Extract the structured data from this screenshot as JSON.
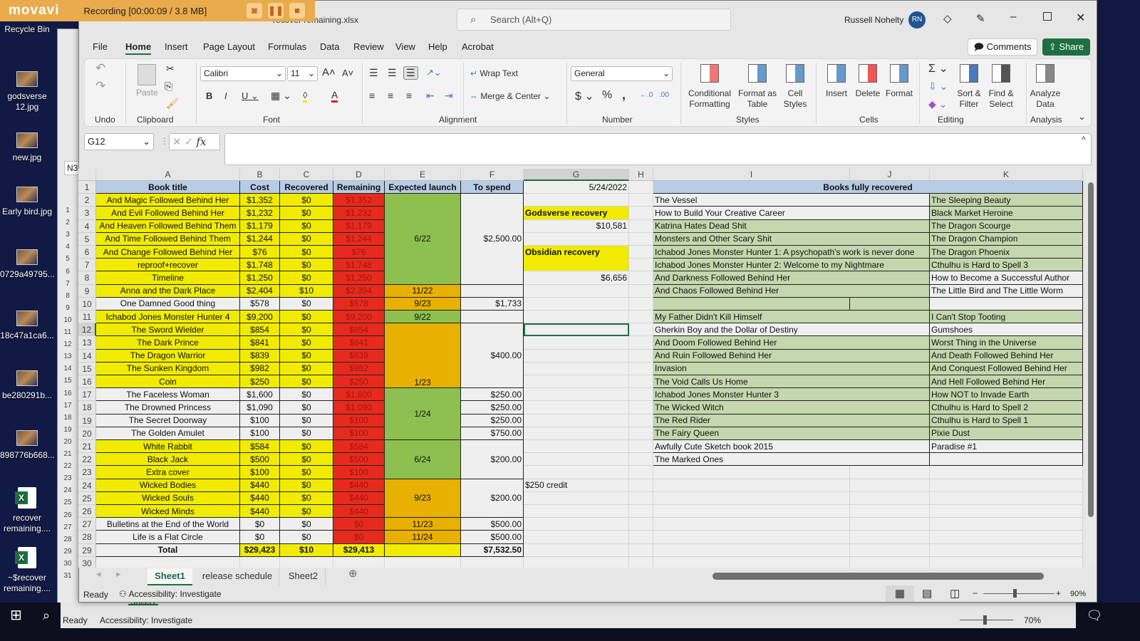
{
  "recorder": {
    "brand": "movavi",
    "status": "Recording  [00:00:09 / 3.8 MB]",
    "buttons": [
      "camera-icon",
      "pause-icon",
      "stop-icon"
    ]
  },
  "desktop": {
    "icons": [
      {
        "label": "Recycle Bin",
        "type": "bin"
      },
      {
        "label": "godsverse 12.jpg",
        "type": "image"
      },
      {
        "label": "new.jpg",
        "type": "image"
      },
      {
        "label": "Early bird.jpg",
        "type": "image"
      },
      {
        "label": "0729a49795...",
        "type": "image"
      },
      {
        "label": "18c47a1ca6...",
        "type": "image"
      },
      {
        "label": "be280291b...",
        "type": "image"
      },
      {
        "label": "898776b668...",
        "type": "image"
      },
      {
        "label": "recover remaining....",
        "type": "excel"
      },
      {
        "label": "~$recover remaining....",
        "type": "excel"
      }
    ]
  },
  "window": {
    "filename": "recover remaining.xlsx",
    "search_placeholder": "Search (Alt+Q)",
    "user": "Russell Nohelty",
    "avatar": "RN",
    "comments": "Comments",
    "share": "Share"
  },
  "tabs": [
    "File",
    "Home",
    "Insert",
    "Page Layout",
    "Formulas",
    "Data",
    "Review",
    "View",
    "Help",
    "Acrobat"
  ],
  "active_tab": "Home",
  "ribbon": {
    "font": "Calibri",
    "size": "11",
    "wrap": "Wrap Text",
    "merge": "Merge & Center",
    "number_format": "General",
    "paste": "Paste",
    "styles": [
      "Conditional Formatting",
      "Format as Table",
      "Cell Styles"
    ],
    "cells": [
      "Insert",
      "Delete",
      "Format"
    ],
    "editing": [
      "Sort & Filter",
      "Find & Select"
    ],
    "analysis": "Analyze Data",
    "groups": [
      "Undo",
      "Clipboard",
      "Font",
      "Alignment",
      "Number",
      "Styles",
      "Cells",
      "Editing",
      "Analysis"
    ]
  },
  "formula_bar": {
    "name_box": "G12",
    "formula": ""
  },
  "columns": [
    "A",
    "B",
    "C",
    "D",
    "E",
    "F",
    "G",
    "H",
    "I",
    "J",
    "K"
  ],
  "selected_cell": "G12",
  "colors": {
    "yellow": "#f0eb00",
    "red": "#e62b1e",
    "green": "#8dc04f",
    "orange": "#e8b000",
    "header_blue": "#b8cce4",
    "light_green": "#c4d7ae",
    "accent": "#1d6f42"
  },
  "main_table": {
    "headers": [
      "Book title",
      "Cost",
      "Recovered",
      "Remaining",
      "Expected launch",
      "To spend"
    ],
    "rows": [
      {
        "title": "And Magic Followed Behind Her",
        "cost": "$1,352",
        "recovered": "$0",
        "remaining": "$1,352",
        "fill": "yellow"
      },
      {
        "title": "And Evil Followed Behind Her",
        "cost": "$1,232",
        "recovered": "$0",
        "remaining": "$1,232",
        "fill": "yellow"
      },
      {
        "title": "And Heaven Followed Behind Them",
        "cost": "$1,179",
        "recovered": "$0",
        "remaining": "$1,179",
        "fill": "yellow"
      },
      {
        "title": "And Time Followed Behind Them",
        "cost": "$1,244",
        "recovered": "$0",
        "remaining": "$1,244",
        "fill": "yellow"
      },
      {
        "title": "And Change Followed Behind Her",
        "cost": "$76",
        "recovered": "$0",
        "remaining": "$76",
        "fill": "yellow"
      },
      {
        "title": "reproof+recover",
        "cost": "$1,748",
        "recovered": "$0",
        "remaining": "$1,748",
        "fill": "yellow"
      },
      {
        "title": "Timeline",
        "cost": "$1,250",
        "recovered": "$0",
        "remaining": "$1,250",
        "fill": "yellow"
      },
      {
        "title": "Anna and the Dark Place",
        "cost": "$2,404",
        "recovered": "$10",
        "remaining": "$2,394",
        "fill": "yellow"
      },
      {
        "title": "One Damned Good thing",
        "cost": "$578",
        "recovered": "$0",
        "remaining": "$578",
        "fill": "none"
      },
      {
        "title": "Ichabod Jones Monster Hunter 4",
        "cost": "$9,200",
        "recovered": "$0",
        "remaining": "$9,200",
        "fill": "yellow"
      },
      {
        "title": "The Sword Wielder",
        "cost": "$854",
        "recovered": "$0",
        "remaining": "$854",
        "fill": "yellow"
      },
      {
        "title": "The Dark Prince",
        "cost": "$841",
        "recovered": "$0",
        "remaining": "$841",
        "fill": "yellow"
      },
      {
        "title": "The Dragon Warrior",
        "cost": "$839",
        "recovered": "$0",
        "remaining": "$839",
        "fill": "yellow"
      },
      {
        "title": "The Sunken Kingdom",
        "cost": "$982",
        "recovered": "$0",
        "remaining": "$982",
        "fill": "yellow"
      },
      {
        "title": "Coin",
        "cost": "$250",
        "recovered": "$0",
        "remaining": "$250",
        "fill": "yellow"
      },
      {
        "title": "The Faceless Woman",
        "cost": "$1,600",
        "recovered": "$0",
        "remaining": "$1,600",
        "fill": "none"
      },
      {
        "title": "The Drowned Princess",
        "cost": "$1,090",
        "recovered": "$0",
        "remaining": "$1,090",
        "fill": "none"
      },
      {
        "title": "The Secret Doorway",
        "cost": "$100",
        "recovered": "$0",
        "remaining": "$100",
        "fill": "none"
      },
      {
        "title": "The Golden Amulet",
        "cost": "$100",
        "recovered": "$0",
        "remaining": "$100",
        "fill": "none"
      },
      {
        "title": "White Rabbit",
        "cost": "$584",
        "recovered": "$0",
        "remaining": "$584",
        "fill": "yellow"
      },
      {
        "title": "Black Jack",
        "cost": "$500",
        "recovered": "$0",
        "remaining": "$500",
        "fill": "yellow"
      },
      {
        "title": "Extra cover",
        "cost": "$100",
        "recovered": "$0",
        "remaining": "$100",
        "fill": "yellow"
      },
      {
        "title": "Wicked Bodies",
        "cost": "$440",
        "recovered": "$0",
        "remaining": "$440",
        "fill": "yellow"
      },
      {
        "title": "Wicked Souls",
        "cost": "$440",
        "recovered": "$0",
        "remaining": "$440",
        "fill": "yellow"
      },
      {
        "title": "Wicked Minds",
        "cost": "$440",
        "recovered": "$0",
        "remaining": "$440",
        "fill": "yellow"
      },
      {
        "title": "Bulletins at the End of the World",
        "cost": "$0",
        "recovered": "$0",
        "remaining": "$0",
        "fill": "none"
      },
      {
        "title": "Life is a Flat Circle",
        "cost": "$0",
        "recovered": "$0",
        "remaining": "$0",
        "fill": "none"
      }
    ],
    "total": {
      "title": "Total",
      "cost": "$29,423",
      "recovered": "$10",
      "remaining": "$29,413",
      "to_spend": "$7,532.50"
    },
    "launch_groups": [
      {
        "from": 2,
        "to": 8,
        "value": "6/22",
        "fill": "green"
      },
      {
        "from": 9,
        "to": 9,
        "value": "11/22",
        "fill": "orange"
      },
      {
        "from": 10,
        "to": 10,
        "value": "9/23",
        "fill": "orange"
      },
      {
        "from": 11,
        "to": 11,
        "value": "9/22",
        "fill": "green"
      },
      {
        "from": 12,
        "to": 16,
        "value": "1/23",
        "fill": "orange",
        "align": "bottom"
      },
      {
        "from": 17,
        "to": 20,
        "value": "1/24",
        "fill": "green"
      },
      {
        "from": 21,
        "to": 23,
        "value": "6/24",
        "fill": "green"
      },
      {
        "from": 24,
        "to": 26,
        "value": "9/23",
        "fill": "orange"
      },
      {
        "from": 27,
        "to": 27,
        "value": "11/23",
        "fill": "orange"
      },
      {
        "from": 28,
        "to": 28,
        "value": "11/24",
        "fill": "orange"
      },
      {
        "from": 29,
        "to": 29,
        "value": "",
        "fill": "yellow"
      }
    ],
    "spend_groups": [
      {
        "from": 2,
        "to": 8,
        "value": "$2,500.00"
      },
      {
        "from": 9,
        "to": 9,
        "value": ""
      },
      {
        "from": 10,
        "to": 10,
        "value": "$1,733"
      },
      {
        "from": 11,
        "to": 11,
        "value": ""
      },
      {
        "from": 12,
        "to": 16,
        "value": "$400.00"
      },
      {
        "from": 17,
        "to": 17,
        "value": "$250.00"
      },
      {
        "from": 18,
        "to": 18,
        "value": "$250.00"
      },
      {
        "from": 19,
        "to": 19,
        "value": "$250.00"
      },
      {
        "from": 20,
        "to": 20,
        "value": "$750.00"
      },
      {
        "from": 21,
        "to": 23,
        "value": "$200.00"
      },
      {
        "from": 24,
        "to": 26,
        "value": "$200.00"
      },
      {
        "from": 27,
        "to": 27,
        "value": "$500.00"
      },
      {
        "from": 28,
        "to": 28,
        "value": "$500.00"
      }
    ]
  },
  "side_cells": [
    {
      "row": 1,
      "value": "5/24/2022",
      "align": "right"
    },
    {
      "row": 3,
      "value": "Godsverse recovery",
      "align": "left",
      "fill": "yellow",
      "bold": true
    },
    {
      "row": 4,
      "value": "$10,581",
      "align": "right"
    },
    {
      "row": 6,
      "to": 7,
      "value": "Obsidian recovery",
      "align": "left",
      "fill": "yellow",
      "bold": true,
      "valign": "top"
    },
    {
      "row": 8,
      "value": "$6,656",
      "align": "right"
    },
    {
      "row": 24,
      "value": "$250 credit",
      "align": "left"
    }
  ],
  "recovered": {
    "header": "Books fully recovered",
    "col_i": [
      {
        "v": "The Vessel",
        "g": false
      },
      {
        "v": "How to Build Your Creative Career",
        "g": false
      },
      {
        "v": "Katrina Hates Dead Shit",
        "g": true
      },
      {
        "v": "Monsters and Other Scary Shit",
        "g": true
      },
      {
        "v": "Ichabod Jones Monster Hunter 1: A psychopath's work is never done",
        "g": true
      },
      {
        "v": "Ichabod Jones Monster Hunter 2: Welcome to my Nightmare",
        "g": true
      },
      {
        "v": "And Darkness Followed Behind Her",
        "g": true
      },
      {
        "v": "And Chaos Followed Behind Her",
        "g": true
      },
      {
        "v": "",
        "g": true
      },
      {
        "v": "My Father Didn't Kill Himself",
        "g": true
      },
      {
        "v": "Gherkin Boy and the Dollar of Destiny",
        "g": false
      },
      {
        "v": "And Doom Followed Behind Her",
        "g": true
      },
      {
        "v": "And Ruin Followed Behind Her",
        "g": true
      },
      {
        "v": "Invasion",
        "g": true
      },
      {
        "v": "The Void Calls Us Home",
        "g": true
      },
      {
        "v": "Ichabod Jones Monster Hunter 3",
        "g": true
      },
      {
        "v": "The Wicked Witch",
        "g": true
      },
      {
        "v": "The Red Rider",
        "g": true
      },
      {
        "v": "The Fairy Queen",
        "g": true
      },
      {
        "v": "Awfully Cute Sketch book 2015",
        "g": false
      },
      {
        "v": "The Marked Ones",
        "g": false
      }
    ],
    "col_k": [
      {
        "v": "The Sleeping Beauty",
        "g": true
      },
      {
        "v": "Black Market Heroine",
        "g": true
      },
      {
        "v": "The Dragon Scourge",
        "g": true
      },
      {
        "v": "The Dragon Champion",
        "g": true
      },
      {
        "v": "The Dragon Phoenix",
        "g": true
      },
      {
        "v": "Cthulhu is Hard to Spell 3",
        "g": true
      },
      {
        "v": "How to Become a Successful Author",
        "g": false
      },
      {
        "v": "The Little Bird and The Little Worm",
        "g": false
      },
      {
        "v": "",
        "g": false
      },
      {
        "v": "I Can't Stop Tooting",
        "g": true
      },
      {
        "v": "Gumshoes",
        "g": false
      },
      {
        "v": "Worst Thing in the Universe",
        "g": true
      },
      {
        "v": "And Death Followed Behind Her",
        "g": true
      },
      {
        "v": "And Conquest Followed Behind Her",
        "g": true
      },
      {
        "v": "And Hell Followed Behind Her",
        "g": true
      },
      {
        "v": "How NOT to Invade Earth",
        "g": true
      },
      {
        "v": "Cthulhu is Hard to Spell 2",
        "g": true
      },
      {
        "v": "Cthulhu is Hard to Spell 1",
        "g": true
      },
      {
        "v": "Pixie Dust",
        "g": true
      },
      {
        "v": "Paradise #1",
        "g": false
      },
      {
        "v": "",
        "g": false
      }
    ]
  },
  "sheets": [
    "Sheet1",
    "release schedule",
    "Sheet2"
  ],
  "active_sheet": "Sheet1",
  "status": {
    "ready": "Ready",
    "accessibility": "Accessibility: Investigate",
    "zoom": "90%",
    "zoom_fraction": 0.45
  },
  "background_window": {
    "name_box": "N3",
    "ready": "Ready",
    "accessibility": "Accessibility: Investigate",
    "zoom": "70%",
    "sheet": "Sheet1"
  }
}
